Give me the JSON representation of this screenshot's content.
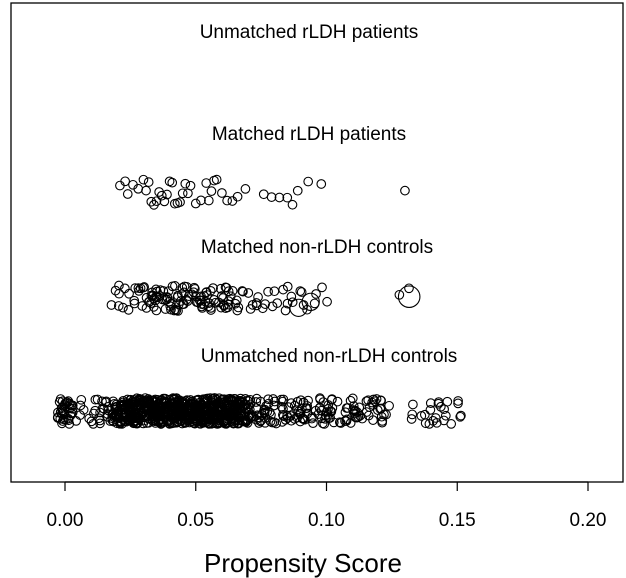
{
  "chart_data": {
    "type": "scatter",
    "title": "",
    "xlabel": "Propensity Score",
    "ylabel": "",
    "xlim": [
      -0.021,
      0.213
    ],
    "x_ticks": [
      "0.00",
      "0.05",
      "0.10",
      "0.15",
      "0.20"
    ],
    "grid": false,
    "groups": [
      {
        "name": "Unmatched rLDH patients",
        "points": []
      },
      {
        "name": "Matched rLDH patients",
        "points": [
          0.021,
          0.023,
          0.024,
          0.026,
          0.028,
          0.03,
          0.031,
          0.032,
          0.033,
          0.034,
          0.035,
          0.036,
          0.037,
          0.038,
          0.039,
          0.04,
          0.041,
          0.042,
          0.043,
          0.044,
          0.045,
          0.046,
          0.047,
          0.048,
          0.05,
          0.052,
          0.054,
          0.055,
          0.056,
          0.057,
          0.058,
          0.06,
          0.062,
          0.064,
          0.066,
          0.069,
          0.076,
          0.079,
          0.082,
          0.085,
          0.087,
          0.089,
          0.093,
          0.098,
          0.13
        ],
        "weights": [
          1,
          1,
          1,
          1,
          1,
          1,
          1,
          1,
          1,
          1,
          1,
          1,
          1,
          1,
          1,
          1,
          1,
          1,
          1,
          1,
          1,
          1,
          1,
          1,
          1,
          1,
          1,
          1,
          1,
          1,
          1,
          1,
          1,
          1,
          1,
          1,
          1,
          1,
          1,
          1,
          1,
          1,
          1,
          1,
          1
        ]
      },
      {
        "name": "Matched non-rLDH controls",
        "points": [
          0.02,
          0.022,
          0.024,
          0.027,
          0.028,
          0.03,
          0.031,
          0.032,
          0.033,
          0.034,
          0.035,
          0.036,
          0.037,
          0.038,
          0.039,
          0.04,
          0.041,
          0.042,
          0.043,
          0.044,
          0.045,
          0.046,
          0.047,
          0.048,
          0.05,
          0.051,
          0.052,
          0.053,
          0.054,
          0.055,
          0.056,
          0.057,
          0.058,
          0.06,
          0.061,
          0.062,
          0.063,
          0.064,
          0.066,
          0.069,
          0.072,
          0.076,
          0.079,
          0.082,
          0.085,
          0.087,
          0.09,
          0.093,
          0.098,
          0.13
        ],
        "weights": [
          1,
          1,
          1,
          1,
          1,
          1,
          1,
          1,
          1,
          1,
          1,
          1,
          1,
          1,
          1,
          1,
          1,
          1,
          1,
          1,
          1,
          1,
          1,
          1,
          1,
          1,
          1,
          1,
          1,
          1,
          1,
          1,
          1,
          1,
          1,
          1,
          1,
          1,
          1,
          1,
          1,
          1,
          1,
          1,
          1,
          1,
          2,
          2,
          1,
          2.5
        ]
      },
      {
        "name": "Unmatched non-rLDH controls",
        "points": [
          0.0,
          0.0,
          0.0,
          0.0,
          0.0,
          0.0,
          0.007,
          0.012,
          0.014,
          0.016,
          0.018,
          0.019,
          0.02,
          0.021,
          0.022,
          0.023,
          0.024,
          0.025,
          0.026,
          0.027,
          0.028,
          0.029,
          0.03,
          0.031,
          0.032,
          0.033,
          0.034,
          0.035,
          0.036,
          0.037,
          0.038,
          0.039,
          0.04,
          0.041,
          0.042,
          0.043,
          0.044,
          0.045,
          0.046,
          0.047,
          0.048,
          0.049,
          0.05,
          0.051,
          0.052,
          0.053,
          0.054,
          0.055,
          0.056,
          0.057,
          0.058,
          0.059,
          0.06,
          0.061,
          0.062,
          0.063,
          0.064,
          0.065,
          0.066,
          0.067,
          0.068,
          0.069,
          0.07,
          0.072,
          0.074,
          0.076,
          0.078,
          0.08,
          0.082,
          0.084,
          0.086,
          0.088,
          0.09,
          0.092,
          0.094,
          0.096,
          0.098,
          0.1,
          0.102,
          0.105,
          0.108,
          0.11,
          0.113,
          0.115,
          0.118,
          0.12,
          0.124,
          0.135,
          0.14,
          0.143,
          0.149
        ],
        "weights": []
      }
    ]
  }
}
